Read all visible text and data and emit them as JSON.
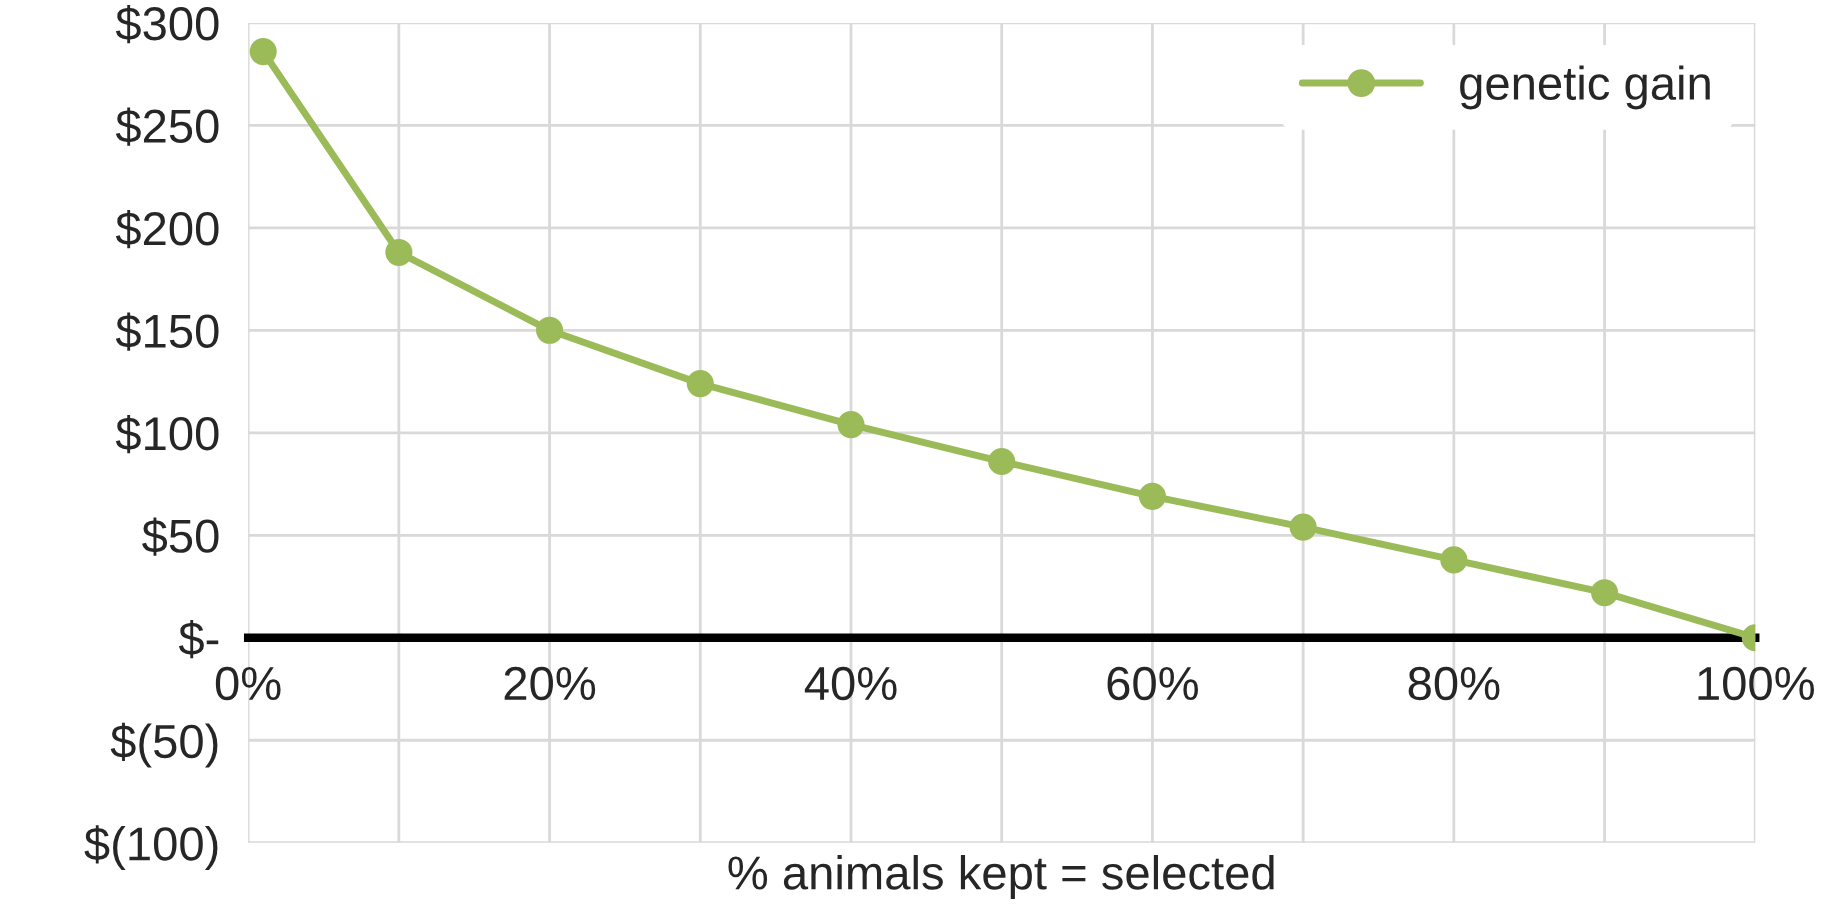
{
  "chart_data": {
    "type": "line",
    "xlabel": "% animals kept = selected",
    "x": [
      1,
      10,
      20,
      30,
      40,
      50,
      60,
      70,
      80,
      90,
      100
    ],
    "series": [
      {
        "name": "genetic gain",
        "color": "#9bbb59",
        "values": [
          286,
          188,
          150,
          124,
          104,
          86,
          69,
          54,
          38,
          22,
          0
        ]
      }
    ],
    "xlim": [
      0,
      100
    ],
    "xticks": [
      {
        "value": 0,
        "label": "0%"
      },
      {
        "value": 10,
        "label": null
      },
      {
        "value": 20,
        "label": "20%"
      },
      {
        "value": 30,
        "label": null
      },
      {
        "value": 40,
        "label": "40%"
      },
      {
        "value": 50,
        "label": null
      },
      {
        "value": 60,
        "label": "60%"
      },
      {
        "value": 70,
        "label": null
      },
      {
        "value": 80,
        "label": "80%"
      },
      {
        "value": 90,
        "label": null
      },
      {
        "value": 100,
        "label": "100%"
      }
    ],
    "ylim": [
      -100,
      300
    ],
    "yticks": [
      {
        "value": -100,
        "label": "$(100)"
      },
      {
        "value": -50,
        "label": "$(50)"
      },
      {
        "value": 0,
        "label": "$-"
      },
      {
        "value": 50,
        "label": "$50"
      },
      {
        "value": 100,
        "label": "$100"
      },
      {
        "value": 150,
        "label": "$150"
      },
      {
        "value": 200,
        "label": "$200"
      },
      {
        "value": 250,
        "label": "$250"
      },
      {
        "value": 300,
        "label": "$300"
      }
    ],
    "grid": true,
    "legend": "top right",
    "marker": "circle",
    "line_style": "solid"
  }
}
